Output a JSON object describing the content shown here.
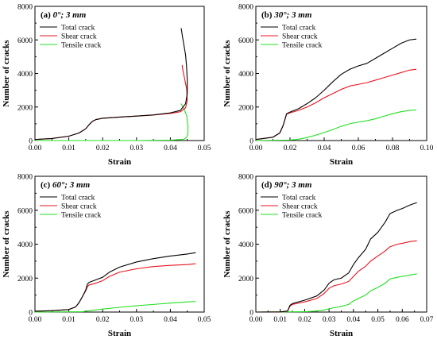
{
  "figure": {
    "colors": {
      "total": "#000000",
      "shear": "#e8141c",
      "tensile": "#22e022"
    }
  },
  "chart_data": [
    {
      "type": "line",
      "label": "(a)",
      "title": "0°; 3 mm",
      "xlabel": "Strain",
      "ylabel": "Number of cracks",
      "xlim": [
        0,
        0.05
      ],
      "ylim": [
        0,
        8000
      ],
      "xticks": [
        "0.00",
        "0.01",
        "0.02",
        "0.03",
        "0.04",
        "0.05"
      ],
      "yticks": [
        "0",
        "2000",
        "4000",
        "6000",
        "8000"
      ],
      "legend": "top-left",
      "series": [
        {
          "name": "Total crack",
          "color_key": "total",
          "x": [
            0,
            0.005,
            0.01,
            0.013,
            0.015,
            0.016,
            0.017,
            0.018,
            0.02,
            0.025,
            0.03,
            0.035,
            0.04,
            0.043,
            0.0445,
            0.045,
            0.045,
            0.0448,
            0.0445,
            0.044,
            0.0435,
            0.0432
          ],
          "y": [
            60,
            120,
            260,
            450,
            700,
            950,
            1150,
            1250,
            1330,
            1400,
            1460,
            1530,
            1650,
            1800,
            2200,
            2800,
            3600,
            4400,
            5100,
            5700,
            6300,
            6700
          ]
        },
        {
          "name": "Shear crack",
          "color_key": "shear",
          "x": [
            0,
            0.005,
            0.01,
            0.013,
            0.015,
            0.016,
            0.017,
            0.018,
            0.02,
            0.025,
            0.03,
            0.035,
            0.04,
            0.043,
            0.0445,
            0.045,
            0.0448,
            0.0442,
            0.0437,
            0.0435
          ],
          "y": [
            60,
            120,
            260,
            450,
            700,
            950,
            1150,
            1250,
            1330,
            1400,
            1460,
            1520,
            1620,
            1720,
            1950,
            2400,
            3100,
            3700,
            4200,
            4500
          ]
        },
        {
          "name": "Tensile crack",
          "color_key": "tensile",
          "x": [
            0,
            0.03,
            0.04,
            0.044,
            0.0448,
            0.0452,
            0.0452,
            0.0448,
            0.044,
            0.0432
          ],
          "y": [
            0,
            0,
            20,
            80,
            180,
            400,
            900,
            1500,
            1900,
            2200
          ]
        }
      ]
    },
    {
      "type": "line",
      "label": "(b)",
      "title": "30°; 3 mm",
      "xlabel": "Strain",
      "ylabel": "Number of cracks",
      "xlim": [
        0,
        0.1
      ],
      "ylim": [
        0,
        8000
      ],
      "xticks": [
        "0.00",
        "0.02",
        "0.04",
        "0.06",
        "0.08",
        "0.10"
      ],
      "yticks": [
        "0",
        "2000",
        "4000",
        "6000",
        "8000"
      ],
      "legend": "top-left",
      "series": [
        {
          "name": "Total crack",
          "color_key": "total",
          "x": [
            0,
            0.01,
            0.014,
            0.016,
            0.018,
            0.02,
            0.025,
            0.03,
            0.035,
            0.04,
            0.045,
            0.05,
            0.055,
            0.06,
            0.065,
            0.07,
            0.075,
            0.08,
            0.085,
            0.09,
            0.094
          ],
          "y": [
            60,
            200,
            450,
            900,
            1600,
            1700,
            1900,
            2200,
            2550,
            3000,
            3500,
            3950,
            4250,
            4450,
            4600,
            4900,
            5200,
            5500,
            5800,
            6000,
            6050
          ]
        },
        {
          "name": "Shear crack",
          "color_key": "shear",
          "x": [
            0,
            0.01,
            0.014,
            0.016,
            0.018,
            0.02,
            0.025,
            0.03,
            0.035,
            0.04,
            0.045,
            0.05,
            0.055,
            0.06,
            0.065,
            0.07,
            0.075,
            0.08,
            0.085,
            0.09,
            0.094
          ],
          "y": [
            60,
            200,
            450,
            900,
            1580,
            1650,
            1800,
            2000,
            2250,
            2550,
            2800,
            3050,
            3250,
            3350,
            3450,
            3600,
            3750,
            3900,
            4050,
            4200,
            4250
          ]
        },
        {
          "name": "Tensile crack",
          "color_key": "tensile",
          "x": [
            0,
            0.02,
            0.025,
            0.03,
            0.035,
            0.04,
            0.045,
            0.05,
            0.055,
            0.06,
            0.065,
            0.07,
            0.075,
            0.08,
            0.085,
            0.09,
            0.094
          ],
          "y": [
            0,
            30,
            80,
            180,
            320,
            480,
            650,
            850,
            1000,
            1100,
            1180,
            1300,
            1450,
            1600,
            1720,
            1800,
            1820
          ]
        }
      ]
    },
    {
      "type": "line",
      "label": "(c)",
      "title": "60°; 3 mm",
      "xlabel": "Strain",
      "ylabel": "Number of cracks",
      "xlim": [
        0,
        0.05
      ],
      "ylim": [
        0,
        8000
      ],
      "xticks": [
        "0.00",
        "0.01",
        "0.02",
        "0.03",
        "0.04",
        "0.05"
      ],
      "yticks": [
        "0",
        "2000",
        "4000",
        "6000",
        "8000"
      ],
      "legend": "top-left",
      "series": [
        {
          "name": "Total crack",
          "color_key": "total",
          "x": [
            0,
            0.005,
            0.01,
            0.012,
            0.013,
            0.014,
            0.015,
            0.0155,
            0.016,
            0.018,
            0.02,
            0.022,
            0.025,
            0.03,
            0.035,
            0.04,
            0.045,
            0.0475
          ],
          "y": [
            50,
            80,
            150,
            300,
            550,
            900,
            1300,
            1650,
            1750,
            1900,
            2050,
            2350,
            2650,
            2950,
            3150,
            3300,
            3420,
            3500
          ]
        },
        {
          "name": "Shear crack",
          "color_key": "shear",
          "x": [
            0,
            0.005,
            0.01,
            0.012,
            0.013,
            0.014,
            0.015,
            0.0155,
            0.016,
            0.018,
            0.02,
            0.022,
            0.025,
            0.03,
            0.035,
            0.04,
            0.045,
            0.0475
          ],
          "y": [
            50,
            80,
            150,
            300,
            550,
            900,
            1250,
            1500,
            1600,
            1700,
            1850,
            2100,
            2350,
            2550,
            2680,
            2750,
            2800,
            2850
          ]
        },
        {
          "name": "Tensile crack",
          "color_key": "tensile",
          "x": [
            0,
            0.014,
            0.016,
            0.02,
            0.025,
            0.03,
            0.035,
            0.04,
            0.045,
            0.0475
          ],
          "y": [
            0,
            20,
            80,
            180,
            280,
            370,
            450,
            530,
            600,
            620
          ]
        }
      ]
    },
    {
      "type": "line",
      "label": "(d)",
      "title": "90°; 3 mm",
      "xlabel": "Strain",
      "ylabel": "Number of cracks",
      "xlim": [
        0,
        0.07
      ],
      "ylim": [
        0,
        8000
      ],
      "xticks": [
        "0.00",
        "0.01",
        "0.02",
        "0.03",
        "0.04",
        "0.05",
        "0.06",
        "0.07"
      ],
      "yticks": [
        "0",
        "2000",
        "4000",
        "6000",
        "8000"
      ],
      "legend": "top-left",
      "series": [
        {
          "name": "Total crack",
          "color_key": "total",
          "x": [
            0,
            0.01,
            0.013,
            0.014,
            0.015,
            0.02,
            0.025,
            0.028,
            0.03,
            0.032,
            0.035,
            0.038,
            0.04,
            0.042,
            0.045,
            0.047,
            0.05,
            0.053,
            0.055,
            0.058,
            0.06,
            0.063,
            0.066
          ],
          "y": [
            0,
            10,
            60,
            400,
            500,
            700,
            950,
            1300,
            1700,
            1900,
            2000,
            2300,
            2800,
            3200,
            3700,
            4300,
            4700,
            5300,
            5800,
            6000,
            6100,
            6300,
            6450
          ]
        },
        {
          "name": "Shear crack",
          "color_key": "shear",
          "x": [
            0,
            0.01,
            0.013,
            0.014,
            0.015,
            0.02,
            0.025,
            0.028,
            0.03,
            0.032,
            0.035,
            0.038,
            0.04,
            0.042,
            0.045,
            0.047,
            0.05,
            0.053,
            0.055,
            0.058,
            0.06,
            0.063,
            0.066
          ],
          "y": [
            0,
            10,
            50,
            350,
            450,
            600,
            800,
            1100,
            1400,
            1550,
            1650,
            1800,
            2100,
            2400,
            2700,
            3000,
            3300,
            3600,
            3850,
            4000,
            4050,
            4150,
            4200
          ]
        },
        {
          "name": "Tensile crack",
          "color_key": "tensile",
          "x": [
            0,
            0.02,
            0.025,
            0.028,
            0.03,
            0.033,
            0.035,
            0.038,
            0.04,
            0.042,
            0.045,
            0.047,
            0.05,
            0.053,
            0.055,
            0.058,
            0.06,
            0.063,
            0.066
          ],
          "y": [
            0,
            20,
            60,
            120,
            200,
            280,
            330,
            450,
            650,
            800,
            1000,
            1250,
            1450,
            1700,
            1950,
            2050,
            2100,
            2180,
            2250
          ]
        }
      ]
    }
  ]
}
